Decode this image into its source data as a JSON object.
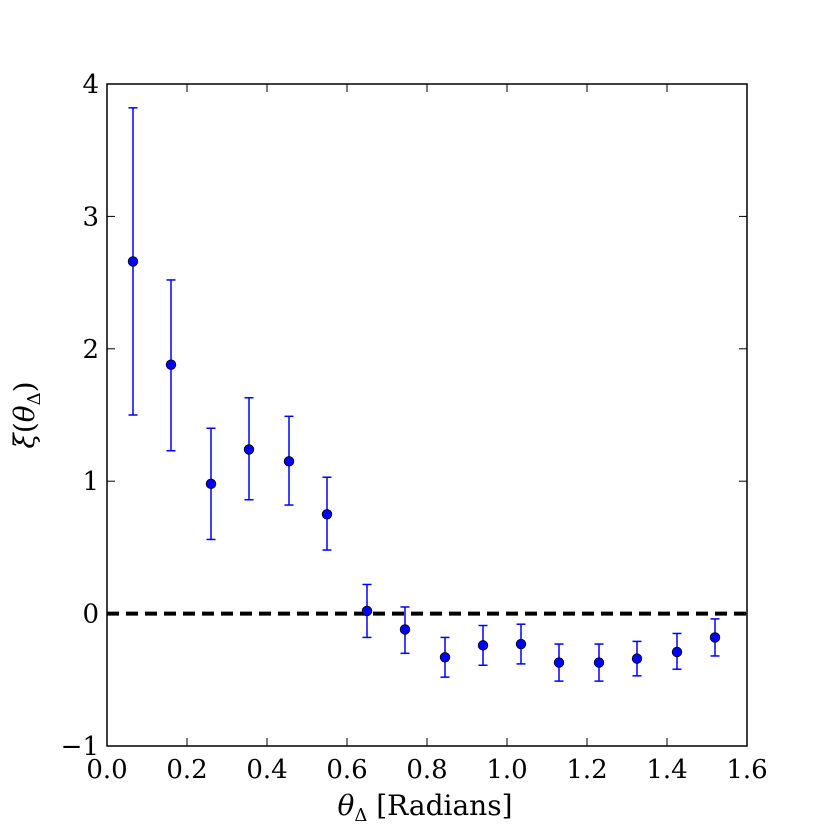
{
  "chart_data": {
    "type": "scatter",
    "title": "",
    "xlabel": "θΔ [Radians]",
    "ylabel": "ξ(θΔ)",
    "xlim": [
      0.0,
      1.6
    ],
    "ylim": [
      -1,
      4
    ],
    "xticks": [
      "0.0",
      "0.2",
      "0.4",
      "0.6",
      "0.8",
      "1.0",
      "1.2",
      "1.4",
      "1.6"
    ],
    "yticks": [
      "−1",
      "0",
      "1",
      "2",
      "3",
      "4"
    ],
    "grid": false,
    "reference_line": {
      "y": 0,
      "style": "dashed",
      "color": "#000000"
    },
    "series": [
      {
        "color": "#0000ff",
        "points": [
          {
            "x": 0.065,
            "y": 2.66,
            "err_low": 1.5,
            "err_high": 3.82
          },
          {
            "x": 0.16,
            "y": 1.88,
            "err_low": 1.23,
            "err_high": 2.52
          },
          {
            "x": 0.26,
            "y": 0.98,
            "err_low": 0.56,
            "err_high": 1.4
          },
          {
            "x": 0.355,
            "y": 1.24,
            "err_low": 0.86,
            "err_high": 1.63
          },
          {
            "x": 0.455,
            "y": 1.15,
            "err_low": 0.82,
            "err_high": 1.49
          },
          {
            "x": 0.55,
            "y": 0.75,
            "err_low": 0.48,
            "err_high": 1.03
          },
          {
            "x": 0.65,
            "y": 0.02,
            "err_low": -0.18,
            "err_high": 0.22
          },
          {
            "x": 0.745,
            "y": -0.12,
            "err_low": -0.3,
            "err_high": 0.05
          },
          {
            "x": 0.845,
            "y": -0.33,
            "err_low": -0.48,
            "err_high": -0.18
          },
          {
            "x": 0.94,
            "y": -0.24,
            "err_low": -0.39,
            "err_high": -0.09
          },
          {
            "x": 1.035,
            "y": -0.23,
            "err_low": -0.38,
            "err_high": -0.08
          },
          {
            "x": 1.13,
            "y": -0.37,
            "err_low": -0.51,
            "err_high": -0.23
          },
          {
            "x": 1.23,
            "y": -0.37,
            "err_low": -0.51,
            "err_high": -0.23
          },
          {
            "x": 1.325,
            "y": -0.34,
            "err_low": -0.47,
            "err_high": -0.21
          },
          {
            "x": 1.425,
            "y": -0.29,
            "err_low": -0.42,
            "err_high": -0.15
          },
          {
            "x": 1.52,
            "y": -0.18,
            "err_low": -0.32,
            "err_high": -0.04
          }
        ]
      }
    ]
  }
}
